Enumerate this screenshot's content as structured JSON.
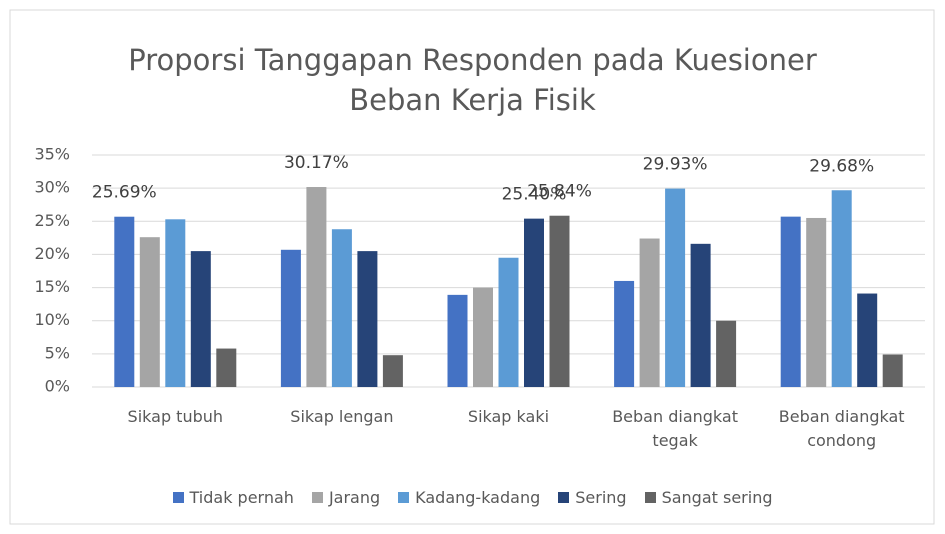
{
  "chart_data": {
    "type": "bar",
    "title": "Proporsi Tanggapan Responden pada Kuesioner Beban Kerja Fisik",
    "categories": [
      "Sikap tubuh",
      "Sikap lengan",
      "Sikap kaki",
      "Beban diangkat tegak",
      "Beban diangkat condong"
    ],
    "series": [
      {
        "name": "Tidak pernah",
        "color": "#4472c4",
        "values": [
          25.69,
          20.7,
          13.9,
          16.0,
          25.7
        ],
        "value_labels": [
          "25.69%",
          null,
          null,
          null,
          null
        ]
      },
      {
        "name": "Jarang",
        "color": "#a5a5a5",
        "values": [
          22.6,
          30.17,
          15.0,
          22.4,
          25.5
        ],
        "value_labels": [
          null,
          "30.17%",
          null,
          null,
          null
        ]
      },
      {
        "name": "Kadang-kadang",
        "color": "#5b9bd5",
        "values": [
          25.3,
          23.8,
          19.5,
          29.93,
          29.68
        ],
        "value_labels": [
          null,
          null,
          null,
          "29.93%",
          "29.68%"
        ]
      },
      {
        "name": "Sering",
        "color": "#264478",
        "values": [
          20.5,
          20.5,
          25.4,
          21.6,
          14.1
        ],
        "value_labels": [
          null,
          null,
          "25.40%",
          null,
          null
        ]
      },
      {
        "name": "Sangat sering",
        "color": "#636363",
        "values": [
          5.8,
          4.8,
          25.84,
          10.0,
          4.9
        ],
        "value_labels": [
          null,
          null,
          "25.84%",
          null,
          null
        ]
      }
    ],
    "ylim": [
      0,
      35
    ],
    "yticks": [
      {
        "value": 0,
        "label": "0%"
      },
      {
        "value": 5,
        "label": "5%"
      },
      {
        "value": 10,
        "label": "10%"
      },
      {
        "value": 15,
        "label": "15%"
      },
      {
        "value": 20,
        "label": "20%"
      },
      {
        "value": 25,
        "label": "25%"
      },
      {
        "value": 30,
        "label": "30%"
      },
      {
        "value": 35,
        "label": "35%"
      }
    ],
    "grid": true,
    "legend": "bottom"
  }
}
